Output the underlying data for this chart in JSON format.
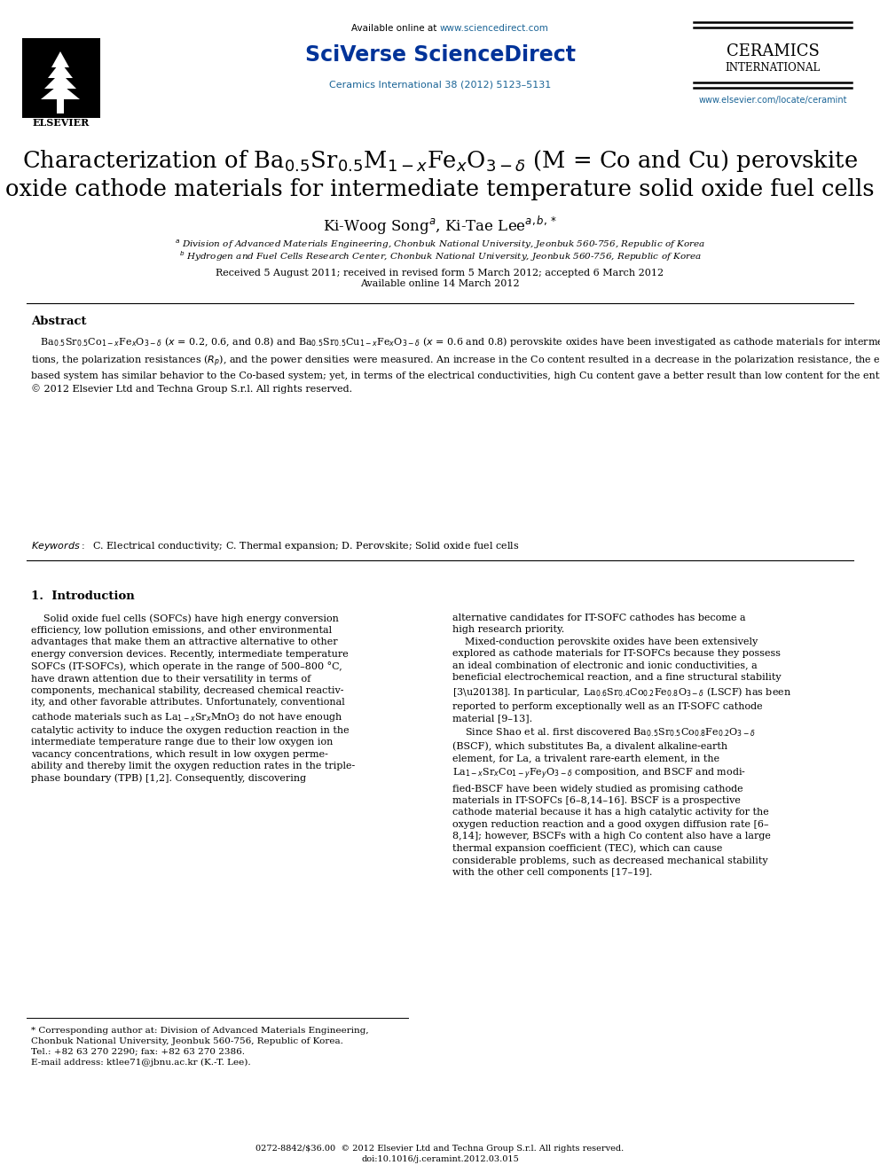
{
  "bg_color": "#ffffff",
  "header": {
    "available_online": "Available online at ",
    "available_url": "www.sciencedirect.com",
    "sciverse": "SciVerse ScienceDirect",
    "journal_info": "Ceramics International 38 (2012) 5123–5131",
    "journal_info_color": "#1a6496",
    "available_color": "#000000",
    "url_color": "#1a6496",
    "sciverse_color": "#003399",
    "ceramics_line1": "CERAMICS",
    "ceramics_line2": "INTERNATIONAL",
    "elsevier_text": "ELSEVIER",
    "website": "www.elsevier.com/locate/ceramint",
    "website_color": "#1a6496"
  },
  "title_line1": "Characterization of Ba$_{0.5}$Sr$_{0.5}$M$_{1-x}$Fe$_x$O$_{3-\\delta}$ (M = Co and Cu) perovskite",
  "title_line2": "oxide cathode materials for intermediate temperature solid oxide fuel cells",
  "title_fontsize": 18.5,
  "authors_text": "Ki-Woog Song$^a$, Ki-Tae Lee$^{a,b,*}$",
  "affil_a": "$^a$ Division of Advanced Materials Engineering, Chonbuk National University, Jeonbuk 560-756, Republic of Korea",
  "affil_b": "$^b$ Hydrogen and Fuel Cells Research Center, Chonbuk National University, Jeonbuk 560-756, Republic of Korea",
  "dates": "Received 5 August 2011; received in revised form 5 March 2012; accepted 6 March 2012",
  "available_date": "Available online 14 March 2012",
  "abstract_title": "Abstract",
  "keywords": "Keywords:  C. Electrical conductivity; C. Thermal expansion; D. Perovskite; Solid oxide fuel cells",
  "section1_title": "1.  Introduction",
  "footnote_text": "* Corresponding author at: Division of Advanced Materials Engineering,\nChonbuk National University, Jeonbuk 560-756, Republic of Korea.\nTel.: +82 63 270 2290; fax: +82 63 270 2386.\nE-mail address: ktlee71@jbnu.ac.kr (K.-T. Lee).",
  "bottom_line1": "0272-8842/$36.00  © 2012 Elsevier Ltd and Techna Group S.r.l. All rights reserved.",
  "bottom_line2": "doi:10.1016/j.ceramint.2012.03.015"
}
